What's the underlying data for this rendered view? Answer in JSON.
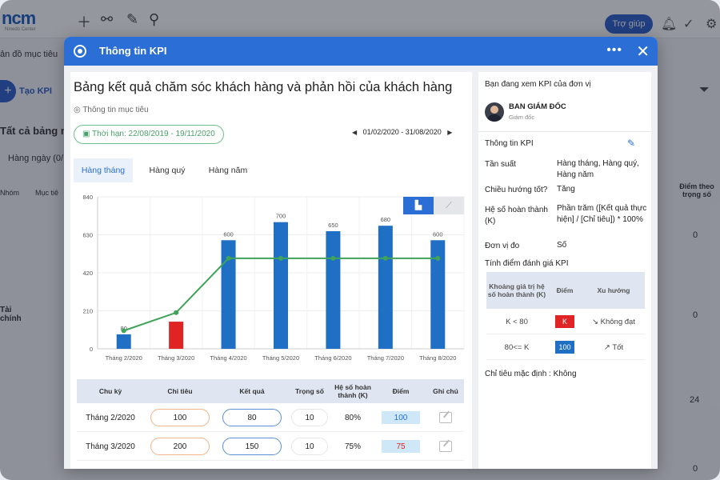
{
  "background": {
    "logo": "ncm",
    "logo_sub": "Ninedo Center",
    "help_button": "Trợ giúp",
    "side_texts": [
      "ản đồ mục tiêu",
      "Tạo KPI",
      "Tất cả bảng m",
      "Hàng ngày (0/1",
      "Nhóm",
      "Mục tiê",
      "Tài chính"
    ],
    "right_values": [
      "Điểm theo trọng số",
      "0",
      "0",
      "24",
      "0"
    ]
  },
  "modal": {
    "title": "Thông tin KPI",
    "more_label": "•••",
    "close_label": "✕"
  },
  "left": {
    "title": "Bảng kết quả chăm sóc khách hàng và phản hồi của khách hàng",
    "goal_info": "Thông tin mục tiêu",
    "deadline": "Thời hạn: 22/08/2019 - 19/11/2020",
    "range": "01/02/2020 - 31/08/2020",
    "range_prev": "◀",
    "range_next": "▶",
    "tabs": [
      {
        "label": "Hàng tháng",
        "active": true
      },
      {
        "label": "Hàng quý",
        "active": false
      },
      {
        "label": "Hàng năm",
        "active": false
      }
    ],
    "chart_toggle_bar_icon": "bar-line-chart-icon",
    "chart_toggle_line_icon": "line-chart-icon"
  },
  "chart_data": {
    "type": "bar",
    "categories": [
      "Tháng 2/2020",
      "Tháng 3/2020",
      "Tháng 4/2020",
      "Tháng 5/2020",
      "Tháng 6/2020",
      "Tháng 7/2020",
      "Tháng 8/2020"
    ],
    "series": [
      {
        "type": "bar",
        "values": [
          80,
          150,
          600,
          700,
          650,
          680,
          600
        ],
        "colors": [
          "#1f6fc4",
          "#e02424",
          "#1f6fc4",
          "#1f6fc4",
          "#1f6fc4",
          "#1f6fc4",
          "#1f6fc4"
        ]
      },
      {
        "type": "line",
        "values": [
          100,
          200,
          500,
          500,
          500,
          500,
          500
        ],
        "color": "#3fa35a"
      }
    ],
    "data_labels": [
      "80",
      "",
      "600",
      "700",
      "650",
      "680",
      "600"
    ],
    "yticks": [
      0,
      210,
      420,
      630,
      840
    ],
    "ylim": [
      0,
      840
    ],
    "grid": true
  },
  "table": {
    "headers": [
      "Chu kỳ",
      "Chỉ tiêu",
      "Kết quả",
      "Trọng số",
      "Hệ số hoàn thành (K)",
      "Điểm",
      "Ghi chú"
    ],
    "rows": [
      {
        "period": "Tháng 2/2020",
        "target": "100",
        "result": "80",
        "weight": "10",
        "k": "80%",
        "score": "100",
        "score_color": "#2b6fd6"
      },
      {
        "period": "Tháng 3/2020",
        "target": "200",
        "result": "150",
        "weight": "10",
        "k": "75%",
        "score": "75",
        "score_color": "#e02424"
      }
    ]
  },
  "right": {
    "viewing_label": "Bạn đang xem KPI của đơn vị",
    "unit_name": "BAN GIÁM ĐỐC",
    "unit_role": "Giám đốc",
    "info_title": "Thông tin KPI",
    "fields": [
      {
        "label": "Tần suất",
        "value": "Hàng tháng, Hàng quý, Hàng năm"
      },
      {
        "label": "Chiều hướng tốt?",
        "value": "Tăng"
      },
      {
        "label": "Hệ số hoàn thành (K)",
        "value": "Phần trăm ([Kết quả thực hiện] / [Chỉ tiêu]) * 100%"
      },
      {
        "label": "Đơn vị đo",
        "value": "Số"
      }
    ],
    "scoring_title": "Tính điểm đánh giá KPI",
    "mini_headers": [
      "Khoảng giá trị hệ số hoàn thành (K)",
      "Điểm",
      "Xu hướng"
    ],
    "mini_rows": [
      {
        "range": "K < 80",
        "score": "K",
        "score_bg": "#e02424",
        "trend": "↘ Không đạt"
      },
      {
        "range": "80<= K",
        "score": "100",
        "score_bg": "#1f6fc4",
        "trend": "↗ Tốt"
      }
    ],
    "default_target": "Chỉ tiêu mặc định : Không"
  }
}
